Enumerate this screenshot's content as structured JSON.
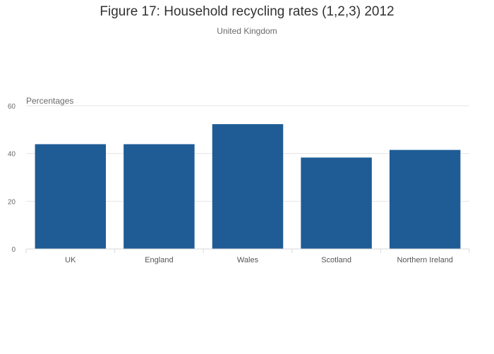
{
  "chart_data": {
    "type": "bar",
    "title": "Figure 17: Household recycling rates (1,2,3) 2012",
    "subtitle": "United Kingdom",
    "ylabel": "Percentages",
    "xlabel": "",
    "categories": [
      "UK",
      "England",
      "Wales",
      "Scotland",
      "Northern Ireland"
    ],
    "values": [
      43.9,
      43.9,
      52.3,
      38.3,
      41.5
    ],
    "ylim": [
      0,
      60
    ],
    "yticks": [
      "0",
      "20",
      "40",
      "60"
    ],
    "grid": true,
    "bar_color": "#1f5c96"
  }
}
